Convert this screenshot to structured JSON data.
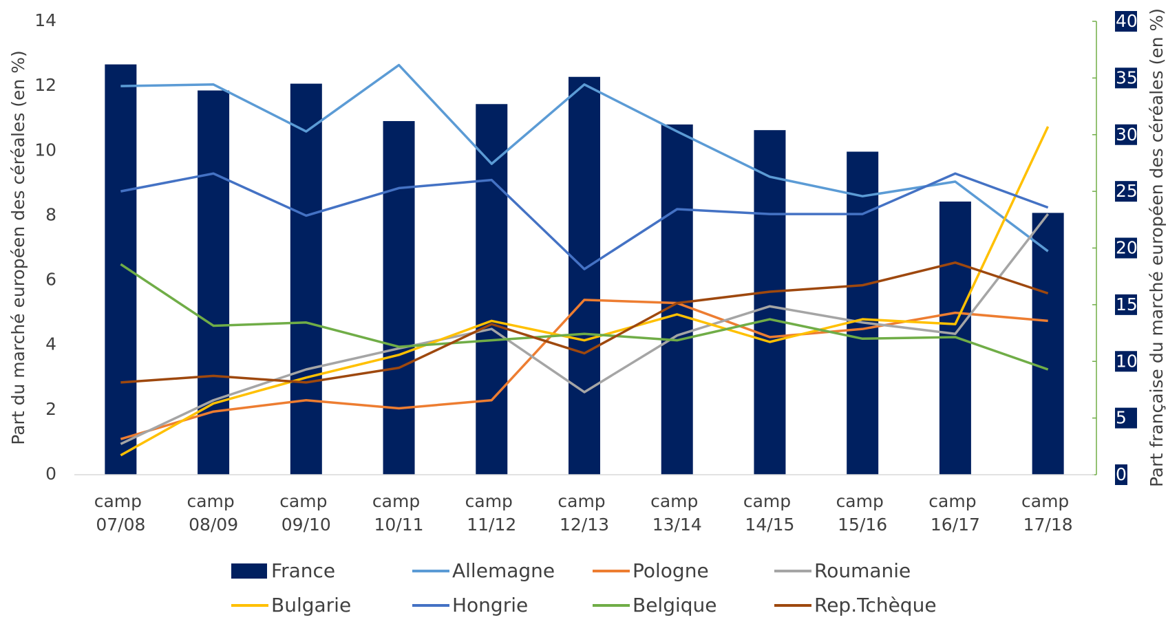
{
  "chart_data": {
    "type": "bar",
    "y_label": "Part du marché européen des céréales (en %)",
    "y2_label": "Part française du marché européen  des céréales (en %)",
    "categories": [
      "camp 07/08",
      "camp 08/09",
      "camp 09/10",
      "camp 10/11",
      "camp 11/12",
      "camp 12/13",
      "camp 13/14",
      "camp 14/15",
      "camp 15/16",
      "camp 16/17",
      "camp 17/18"
    ],
    "ylim": [
      0,
      14
    ],
    "yticks": [
      0,
      2,
      4,
      6,
      8,
      10,
      12,
      14
    ],
    "y2lim": [
      0,
      40
    ],
    "y2ticks": [
      0,
      5,
      10,
      15,
      20,
      25,
      30,
      35,
      40
    ],
    "grid": false,
    "series": [
      {
        "name": "France",
        "type": "bar",
        "axis": "y2",
        "color": "#002060",
        "values": [
          36.2,
          33.9,
          34.5,
          31.2,
          32.7,
          35.1,
          30.9,
          30.4,
          28.5,
          24.1,
          23.1
        ]
      },
      {
        "name": "Allemagne",
        "type": "line",
        "color": "#5b9bd5",
        "values": [
          12.0,
          12.05,
          10.6,
          12.65,
          9.6,
          12.05,
          10.6,
          9.2,
          8.6,
          9.05,
          6.9
        ]
      },
      {
        "name": "Pologne",
        "type": "line",
        "color": "#ed7d31",
        "values": [
          1.1,
          1.95,
          2.3,
          2.05,
          2.3,
          5.4,
          5.3,
          4.25,
          4.5,
          5.0,
          4.75
        ]
      },
      {
        "name": "Roumanie",
        "type": "line",
        "color": "#a5a5a5",
        "values": [
          0.95,
          2.3,
          3.25,
          3.9,
          4.5,
          2.55,
          4.3,
          5.2,
          4.7,
          4.35,
          8.05
        ]
      },
      {
        "name": "Bulgarie",
        "type": "line",
        "color": "#ffc000",
        "values": [
          0.6,
          2.2,
          3.0,
          3.7,
          4.75,
          4.15,
          4.95,
          4.1,
          4.8,
          4.65,
          10.75
        ]
      },
      {
        "name": "Hongrie",
        "type": "line",
        "color": "#4472c4",
        "values": [
          8.75,
          9.3,
          8.0,
          8.85,
          9.1,
          6.35,
          8.2,
          8.05,
          8.05,
          9.3,
          8.25
        ]
      },
      {
        "name": "Belgique",
        "type": "line",
        "color": "#70ad47",
        "values": [
          6.5,
          4.6,
          4.7,
          3.95,
          4.15,
          4.35,
          4.15,
          4.8,
          4.2,
          4.25,
          3.25
        ]
      },
      {
        "name": "Rep.Tchèque",
        "type": "line",
        "color": "#9e480e",
        "values": [
          2.85,
          3.05,
          2.85,
          3.3,
          4.65,
          3.75,
          5.3,
          5.65,
          5.85,
          6.55,
          5.6
        ]
      }
    ]
  }
}
